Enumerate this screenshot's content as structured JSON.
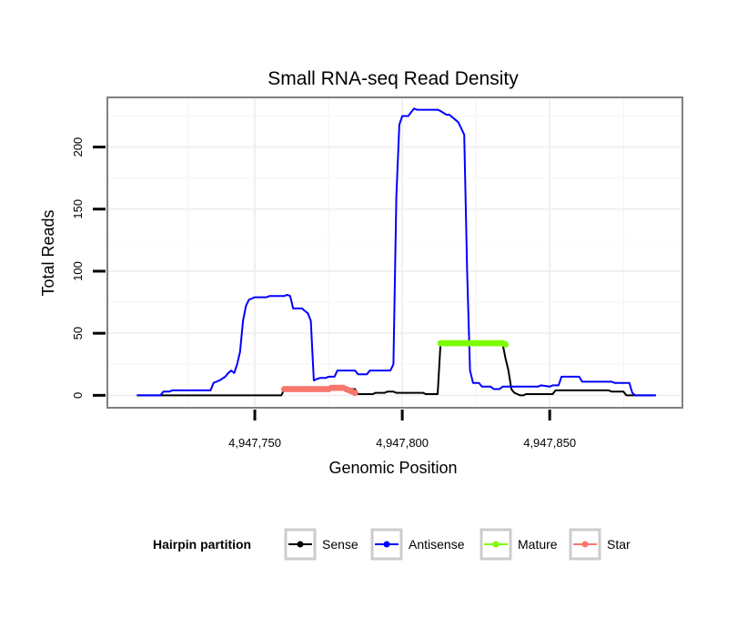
{
  "chart_data": {
    "type": "line",
    "title": "Small RNA-seq Read Density",
    "xlabel": "Genomic Position",
    "ylabel": "Total Reads",
    "xlim": [
      4947700,
      4947895
    ],
    "ylim": [
      -10,
      240
    ],
    "xticks": [
      4947750,
      4947800,
      4947850
    ],
    "xtick_labels": [
      "4,947,750",
      "4,947,800",
      "4,947,850"
    ],
    "yticks": [
      0,
      50,
      100,
      150,
      200
    ],
    "ytick_labels": [
      "0",
      "50",
      "100",
      "150",
      "200"
    ],
    "grid": true,
    "legend": {
      "title": "Hairpin partition",
      "position": "bottom",
      "entries": [
        {
          "label": "Sense",
          "color": "#000000"
        },
        {
          "label": "Antisense",
          "color": "#0000ff"
        },
        {
          "label": "Mature",
          "color": "#7cfc00"
        },
        {
          "label": "Star",
          "color": "#f8766d"
        }
      ]
    },
    "series": [
      {
        "name": "Sense",
        "color": "#000000",
        "points": false,
        "x": [
          4947710,
          4947759,
          4947760,
          4947784,
          4947785,
          4947790,
          4947791,
          4947794,
          4947795,
          4947797,
          4947798,
          4947807,
          4947808,
          4947812,
          4947813,
          4947814
        ],
        "y": [
          0,
          0,
          5,
          5,
          1,
          1,
          2,
          2,
          3,
          3,
          2,
          2,
          1,
          1,
          42,
          42
        ]
      },
      {
        "name": "Sense",
        "color": "#000000",
        "points": false,
        "x": [
          4947834,
          4947835,
          4947836,
          4947837,
          4947838,
          4947839,
          4947840,
          4947841,
          4947842,
          4947844,
          4947845,
          4947851,
          4947852,
          4947870,
          4947871,
          4947875,
          4947876,
          4947886
        ],
        "y": [
          42,
          30,
          20,
          5,
          2,
          1,
          0,
          0,
          1,
          1,
          1,
          1,
          4,
          4,
          3,
          3,
          0,
          0
        ]
      },
      {
        "name": "Antisense",
        "color": "#0000ff",
        "points": false,
        "x": [
          4947710,
          4947718,
          4947719,
          4947721,
          4947722,
          4947735,
          4947736,
          4947738,
          4947740,
          4947741,
          4947742,
          4947743,
          4947744,
          4947745,
          4947746,
          4947747,
          4947748,
          4947749,
          4947750,
          4947751,
          4947752,
          4947754,
          4947755,
          4947760,
          4947761,
          4947762,
          4947763,
          4947764,
          4947765,
          4947766,
          4947767,
          4947768,
          4947769,
          4947770,
          4947771,
          4947772,
          4947773,
          4947774,
          4947775,
          4947777,
          4947778,
          4947784,
          4947785,
          4947788,
          4947789,
          4947796,
          4947797,
          4947798,
          4947799,
          4947800,
          4947801,
          4947802,
          4947804,
          4947805,
          4947811,
          4947812,
          4947813,
          4947815,
          4947816,
          4947819,
          4947821,
          4947822,
          4947823,
          4947824,
          4947826,
          4947827,
          4947830,
          4947831,
          4947833,
          4947834,
          4947835,
          4947846,
          4947847,
          4947850,
          4947851,
          4947853,
          4947854,
          4947860,
          4947861,
          4947871,
          4947872,
          4947876,
          4947877,
          4947878,
          4947879,
          4947886
        ],
        "y": [
          0,
          0,
          3,
          3,
          4,
          4,
          10,
          12,
          15,
          18,
          20,
          18,
          25,
          35,
          60,
          72,
          77,
          78,
          79,
          79,
          79,
          79,
          80,
          80,
          81,
          80,
          70,
          70,
          70,
          70,
          68,
          66,
          60,
          12,
          13,
          14,
          14,
          14,
          15,
          15,
          20,
          20,
          17,
          17,
          20,
          20,
          25,
          160,
          218,
          225,
          225,
          225,
          231,
          230,
          230,
          230,
          229,
          226,
          226,
          220,
          210,
          100,
          20,
          10,
          10,
          7,
          7,
          5,
          5,
          7,
          7,
          7,
          8,
          7,
          8,
          8,
          15,
          15,
          11,
          11,
          10,
          10,
          10,
          2,
          0,
          0
        ]
      },
      {
        "name": "Mature",
        "color": "#7cfc00",
        "points": true,
        "x": [
          4947813,
          4947814,
          4947815,
          4947816,
          4947817,
          4947818,
          4947819,
          4947820,
          4947821,
          4947822,
          4947823,
          4947824,
          4947825,
          4947826,
          4947827,
          4947828,
          4947829,
          4947830,
          4947831,
          4947832,
          4947833,
          4947834,
          4947835
        ],
        "y": [
          42,
          42,
          42,
          42,
          42,
          42,
          42,
          42,
          42,
          42,
          42,
          42,
          42,
          42,
          42,
          42,
          42,
          42,
          42,
          42,
          42,
          42,
          41
        ]
      },
      {
        "name": "Star",
        "color": "#f8766d",
        "points": true,
        "x": [
          4947760,
          4947761,
          4947762,
          4947763,
          4947764,
          4947765,
          4947766,
          4947767,
          4947768,
          4947769,
          4947770,
          4947771,
          4947772,
          4947773,
          4947774,
          4947775,
          4947776,
          4947777,
          4947778,
          4947779,
          4947780,
          4947781,
          4947782,
          4947783,
          4947784
        ],
        "y": [
          5,
          5,
          5,
          5,
          5,
          5,
          5,
          5,
          5,
          5,
          5,
          5,
          5,
          5,
          5,
          5,
          6,
          6,
          6,
          6,
          6,
          5,
          4,
          3,
          2
        ]
      }
    ]
  }
}
